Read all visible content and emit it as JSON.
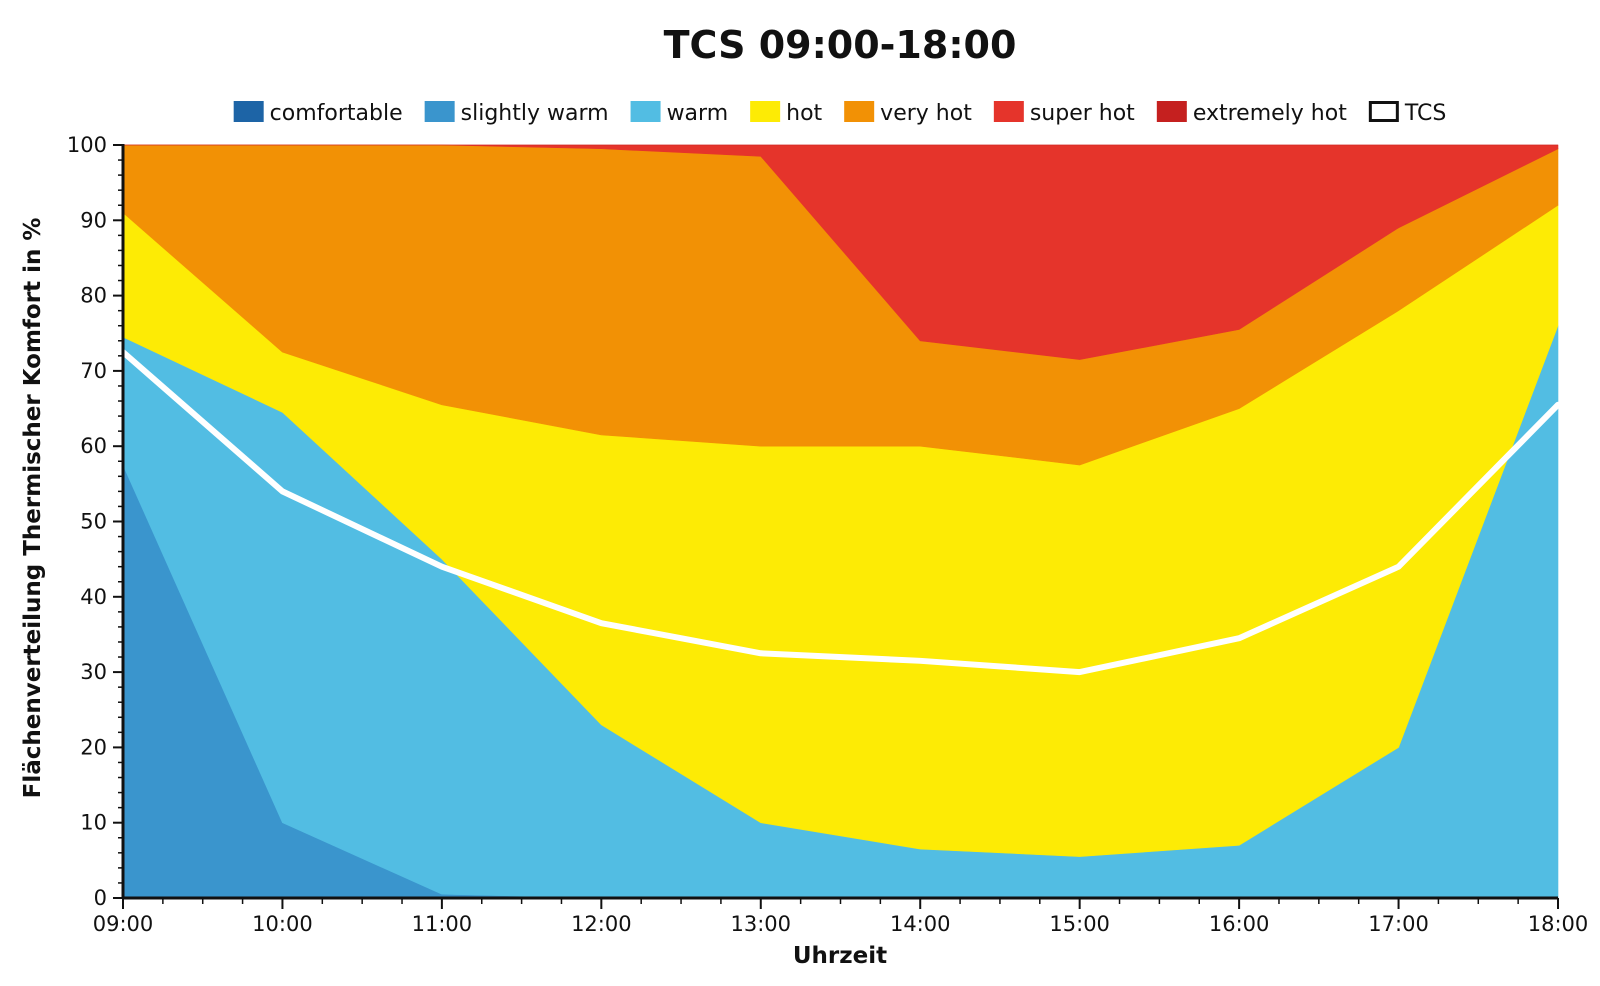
{
  "chart_data": {
    "type": "area",
    "stacked": true,
    "title": "TCS 09:00-18:00",
    "xlabel": "Uhrzeit",
    "ylabel": "Flächenverteilung Thermischer Komfort in %",
    "ylim": [
      0,
      100
    ],
    "yticks": [
      0,
      10,
      20,
      30,
      40,
      50,
      60,
      70,
      80,
      90,
      100
    ],
    "categories": [
      "09:00",
      "10:00",
      "11:00",
      "12:00",
      "13:00",
      "14:00",
      "15:00",
      "16:00",
      "17:00",
      "18:00"
    ],
    "legend_position": "top",
    "grid": false,
    "series": [
      {
        "name": "comfortable",
        "color": "#1d64a6",
        "values": [
          0,
          0,
          0,
          0,
          0,
          0,
          0,
          0,
          0,
          0
        ]
      },
      {
        "name": "slightly warm",
        "color": "#3a95cd",
        "values": [
          57.5,
          10,
          0.5,
          0,
          0,
          0,
          0,
          0,
          0,
          0
        ]
      },
      {
        "name": "warm",
        "color": "#52bde3",
        "values": [
          17,
          54.5,
          44.5,
          23,
          10,
          6.5,
          5.5,
          7,
          20,
          76
        ]
      },
      {
        "name": "hot",
        "color": "#fdeb05",
        "values": [
          16.5,
          8,
          20.5,
          38.5,
          50,
          53.5,
          52,
          58,
          58,
          16
        ]
      },
      {
        "name": "very hot",
        "color": "#f29105",
        "values": [
          9,
          27.5,
          34.5,
          38,
          38.5,
          14,
          14,
          10.5,
          11,
          7.5
        ]
      },
      {
        "name": "super hot",
        "color": "#e5342b",
        "values": [
          0,
          0,
          0,
          0.5,
          1.5,
          26,
          28.5,
          24.5,
          11,
          0.5
        ]
      },
      {
        "name": "extremely hot",
        "color": "#c5201f",
        "values": [
          0,
          0,
          0,
          0,
          0,
          0,
          0,
          0,
          0,
          0
        ]
      }
    ],
    "line": {
      "name": "TCS",
      "color": "#ffffff",
      "values": [
        72.5,
        54,
        44,
        36.5,
        32.5,
        31.5,
        30,
        34.5,
        44,
        65.5
      ]
    }
  }
}
